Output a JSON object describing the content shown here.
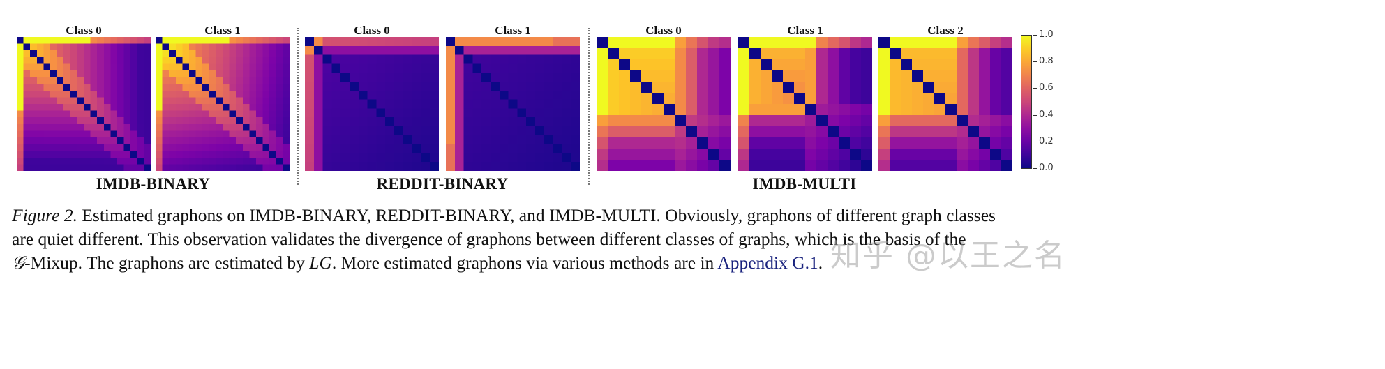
{
  "figure": {
    "label": "Figure 2.",
    "caption_lines": [
      "Estimated graphons on IMDB-BINARY, REDDIT-BINARY, and IMDB-MULTI. Obviously, graphons of different graph classes",
      "are quiet different. This observation validates the divergence of graphons between different classes of graphs, which is the basis of the",
      "-Mixup. The graphons are estimated by "
    ],
    "caption_symbol_G": "𝒢",
    "caption_LG": "LG",
    "caption_tail": ". More estimated graphons via various methods are in ",
    "caption_link": "Appendix G.1",
    "caption_end": ".",
    "watermark": "知乎 @以王之名"
  },
  "colors": {
    "link": "#1a237e",
    "colormap": "plasma"
  },
  "chart_data": {
    "type": "heatmap",
    "title": "Estimated graphons on IMDB-BINARY, REDDIT-BINARY, and IMDB-MULTI",
    "colorbar": {
      "min": 0.0,
      "max": 1.0,
      "ticks": [
        "0.0",
        "0.2",
        "0.4",
        "0.6",
        "0.8",
        "1.0"
      ],
      "colormap": "plasma"
    },
    "datasets": [
      {
        "name": "IMDB-BINARY",
        "resolution": 20,
        "panels": [
          {
            "title": "Class 0",
            "description": "first row/column ~1.0 for first 11 nodes, upper-left block ~0.75-0.85 decaying toward ~0.1 at far corners, zero diagonal"
          },
          {
            "title": "Class 1",
            "description": "first row/column ~1.0 for first 11 nodes, broader upper-left block ~0.8, decays to ~0.1, zero diagonal"
          }
        ]
      },
      {
        "name": "REDDIT-BINARY",
        "resolution": 15,
        "panels": [
          {
            "title": "Class 0",
            "description": "first row/column ~0.55-0.7, rest ~0.1-0.2, zero diagonal"
          },
          {
            "title": "Class 1",
            "description": "first row/column ~0.7, second row/column ~0.35, rest ~0.1, zero diagonal"
          }
        ]
      },
      {
        "name": "IMDB-MULTI",
        "resolution": 12,
        "panels": [
          {
            "title": "Class 0",
            "description": "first row/column ~1.0 for first 7 nodes, 7x7 block ~0.9, decays to ~0.25, zero diagonal"
          },
          {
            "title": "Class 1",
            "description": "first row/column ~1.0 for first 7 nodes, 6x6 block ~0.85, decays to ~0.1, zero diagonal"
          },
          {
            "title": "Class 2",
            "description": "first row/column ~1.0 for first 7 nodes, 7x7 block ~0.85, decays to ~0.1, zero diagonal"
          }
        ]
      }
    ]
  }
}
